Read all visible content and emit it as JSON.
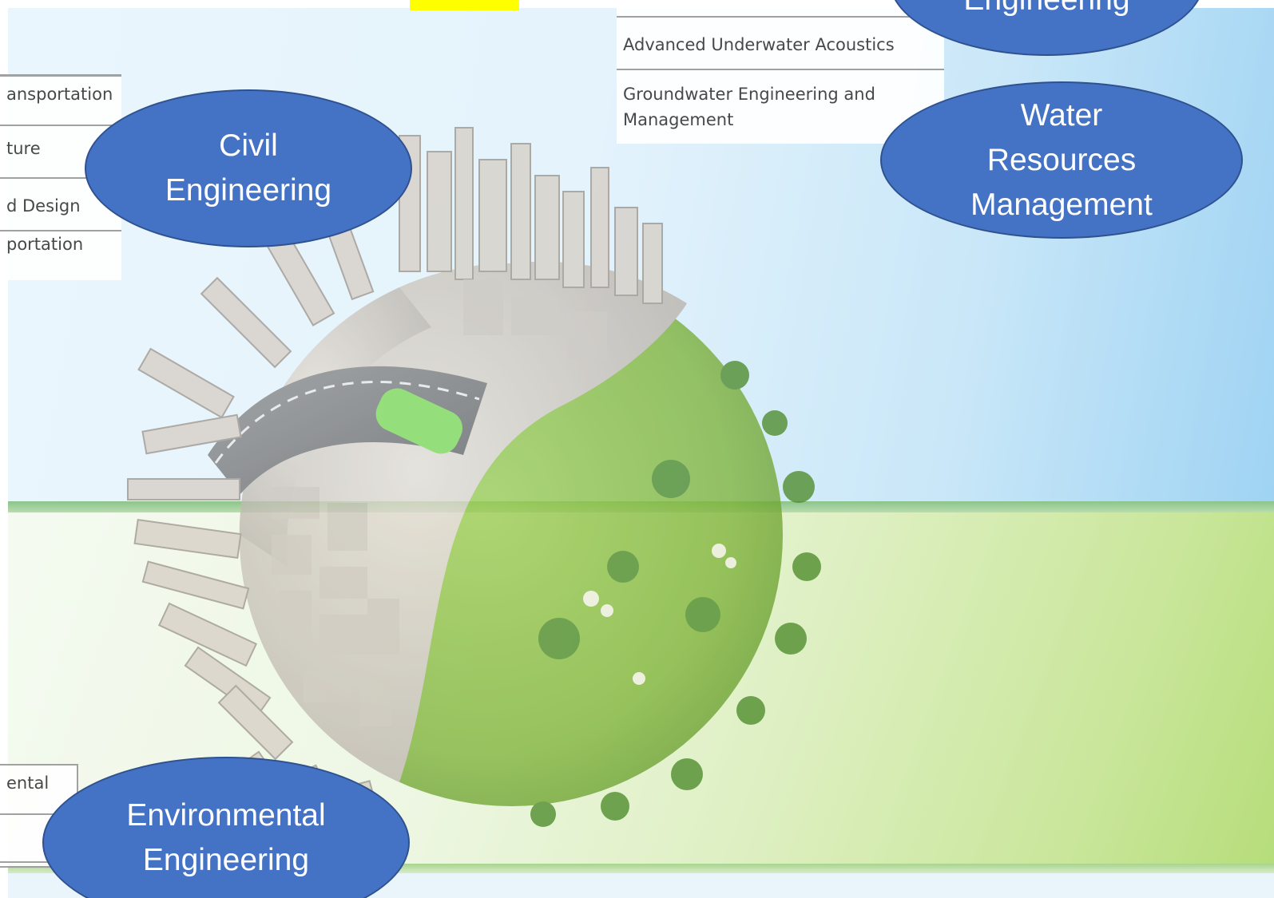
{
  "left_panel": {
    "rows": [
      "ansportation",
      "ture",
      "d Design",
      "portation"
    ]
  },
  "top_panel": {
    "rows": [
      "Advanced Underwater Acoustics",
      "Groundwater Engineering and\nManagement"
    ]
  },
  "bottom_panel": {
    "rows": [
      "ental",
      "",
      ""
    ]
  },
  "bubbles": {
    "top_right": "Engineering",
    "civil": "Civil\nEngineering",
    "water": "Water\nResources\nManagement",
    "environmental": "Environmental\nEngineering"
  },
  "colors": {
    "bubble_fill": "#4472c4",
    "bubble_border": "#2f528f",
    "marker": "#ffff00",
    "grass": "#8cc63f",
    "sky": "#9fd3f3"
  },
  "illustration": "city-and-nature-globe"
}
